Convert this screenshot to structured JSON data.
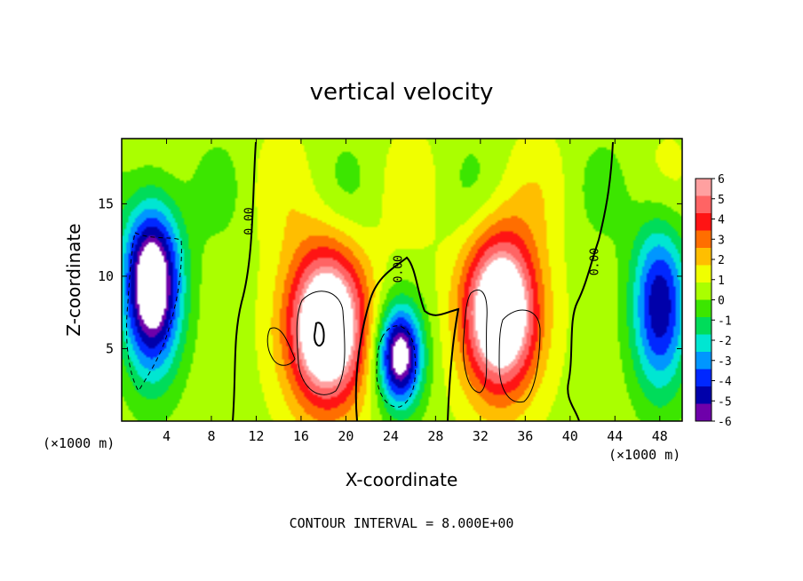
{
  "chart_data": {
    "type": "heatmap",
    "title": "vertical velocity",
    "xlabel": "X-coordinate",
    "ylabel": "Z-coordinate",
    "x_unit_label": "(×1000 m)",
    "x_unit_label_right": "(×1000 m)",
    "footer": "CONTOUR INTERVAL = 8.000E+00",
    "xlim": [
      0,
      50
    ],
    "ylim": [
      0,
      19.5
    ],
    "x_ticks": [
      4,
      8,
      12,
      16,
      20,
      24,
      28,
      32,
      36,
      40,
      44,
      48
    ],
    "y_ticks": [
      5,
      10,
      15
    ],
    "colorbar": {
      "ticks": [
        6,
        5,
        4,
        3,
        2,
        1,
        0,
        -1,
        -2,
        -3,
        -4,
        -5,
        -6
      ],
      "range": [
        -6,
        6
      ]
    },
    "contour_labels": [
      {
        "text": "0.00",
        "x": 11.7,
        "y": 13.8
      },
      {
        "text": "0.00",
        "x": 25.0,
        "y": 10.5
      },
      {
        "text": "0.00",
        "x": 42.5,
        "y": 11.0
      }
    ],
    "features": [
      {
        "name": "downdraft-left",
        "x": 2.7,
        "z": 9.5,
        "sx": 2.6,
        "sz": 6.0,
        "value": -9
      },
      {
        "name": "updraft-1",
        "x": 18.3,
        "z": 6.5,
        "sx": 3.5,
        "sz": 5.5,
        "value": 9
      },
      {
        "name": "downdraft-center",
        "x": 24.8,
        "z": 4.5,
        "sx": 2.0,
        "sz": 3.5,
        "value": -8
      },
      {
        "name": "updraft-2",
        "x": 33.8,
        "z": 7.5,
        "sx": 3.3,
        "sz": 5.5,
        "value": 9
      },
      {
        "name": "downdraft-right",
        "x": 48.0,
        "z": 8.0,
        "sx": 2.5,
        "sz": 6.0,
        "value": -6
      }
    ]
  }
}
